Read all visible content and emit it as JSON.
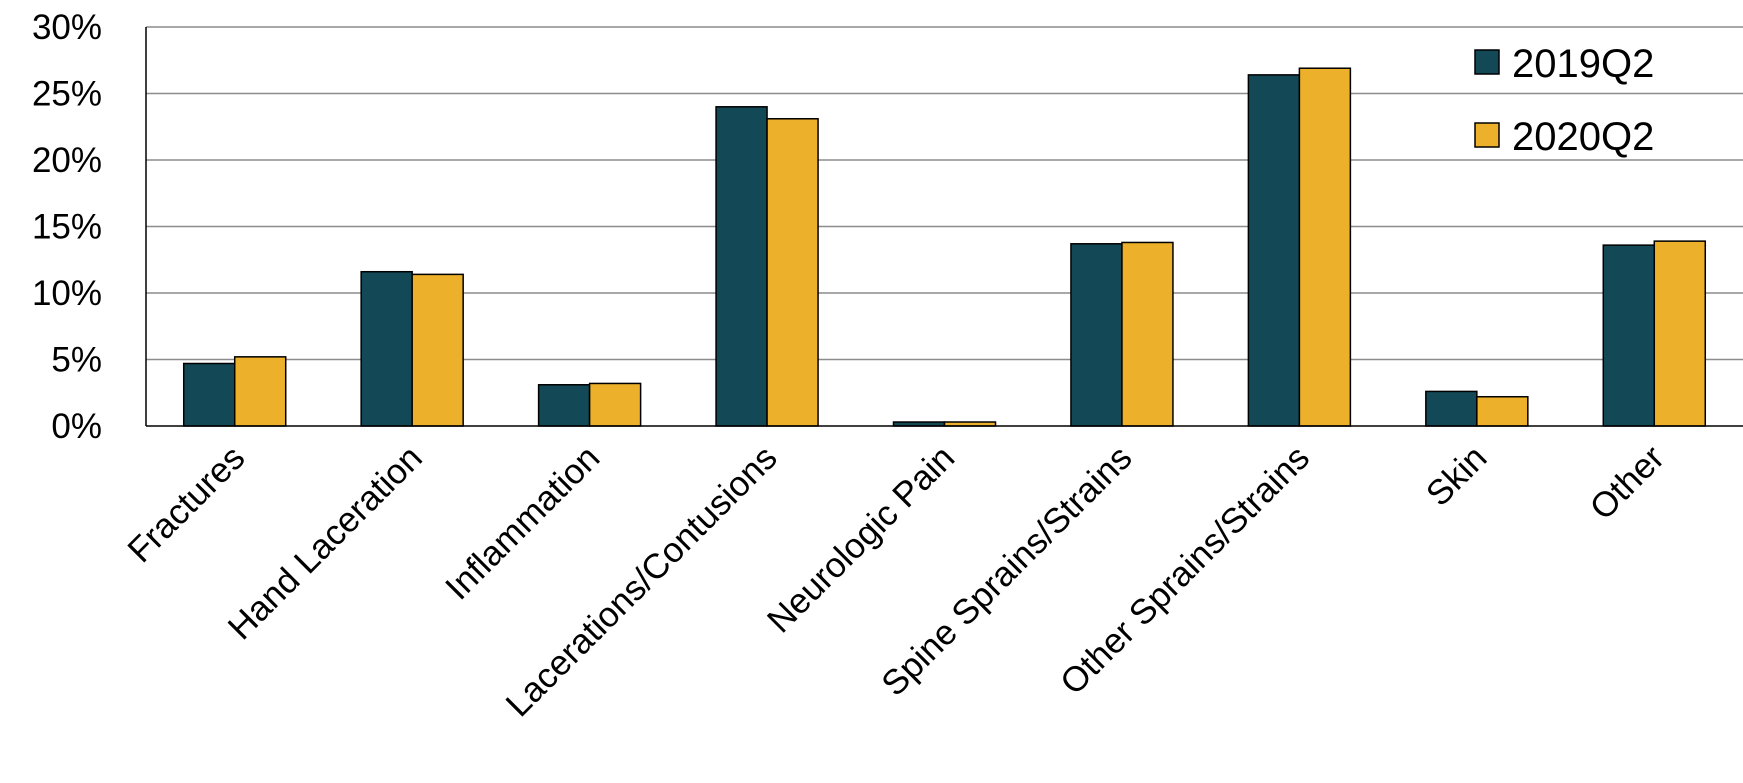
{
  "chart_data": {
    "type": "bar",
    "title": "",
    "xlabel": "",
    "ylabel": "",
    "categories": [
      "Fractures",
      "Hand Laceration",
      "Inflammation",
      "Lacerations/Contusions",
      "Neurologic Pain",
      "Spine Sprains/Strains",
      "Other Sprains/Strains",
      "Skin",
      "Other"
    ],
    "series": [
      {
        "name": "2019Q2",
        "color": "#134856",
        "values": [
          4.7,
          11.6,
          3.1,
          24.0,
          0.3,
          13.7,
          26.4,
          2.6,
          13.6
        ]
      },
      {
        "name": "2020Q2",
        "color": "#ecb02a",
        "values": [
          5.2,
          11.4,
          3.2,
          23.1,
          0.3,
          13.8,
          26.9,
          2.2,
          13.9
        ]
      }
    ],
    "ylim": [
      0,
      30
    ],
    "yticks": [
      "0%",
      "5%",
      "10%",
      "15%",
      "20%",
      "25%",
      "30%"
    ],
    "ytick_values": [
      0,
      5,
      10,
      15,
      20,
      25,
      30
    ],
    "grid": true,
    "legend_position": "top-right"
  }
}
